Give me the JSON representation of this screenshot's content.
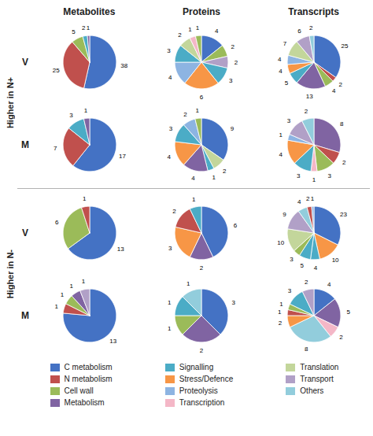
{
  "chart_data": {
    "type": "pie",
    "data_labels": true,
    "legend": "bottom",
    "columns": [
      "Metabolites",
      "Proteins",
      "Transcripts"
    ],
    "groups": [
      {
        "label": "Higher in N+",
        "rows": [
          {
            "label": "V",
            "pies": [
              {
                "values": [
                  38,
                  25,
                  5,
                  2,
                  1
                ],
                "colors": [
                  "#4472C4",
                  "#C0504D",
                  "#9BBB59",
                  "#4BACC6",
                  "#8064A2"
                ]
              },
              {
                "values": [
                  4,
                  2,
                  2,
                  3,
                  6,
                  4,
                  3,
                  2,
                  1,
                  1
                ],
                "colors": [
                  "#4472C4",
                  "#9BBB59",
                  "#B1A0C7",
                  "#4BACC6",
                  "#F79646",
                  "#8DB4E2",
                  "#4BACC6",
                  "#C3D69B",
                  "#F4B7C7",
                  "#9BBB59"
                ]
              },
              {
                "values": [
                  25,
                  2,
                  4,
                  13,
                  5,
                  4,
                  4,
                  7,
                  6,
                  2
                ],
                "colors": [
                  "#4472C4",
                  "#C0504D",
                  "#9BBB59",
                  "#8064A2",
                  "#4BACC6",
                  "#F79646",
                  "#8DB4E2",
                  "#C3D69B",
                  "#B1A0C7",
                  "#92CDDC"
                ]
              }
            ]
          },
          {
            "label": "M",
            "pies": [
              {
                "values": [
                  17,
                  7,
                  3,
                  1
                ],
                "colors": [
                  "#4472C4",
                  "#C0504D",
                  "#4BACC6",
                  "#8064A2"
                ]
              },
              {
                "values": [
                  9,
                  2,
                  1,
                  4,
                  4,
                  3,
                  2,
                  1
                ],
                "colors": [
                  "#4472C4",
                  "#C3D69B",
                  "#4BACC6",
                  "#8064A2",
                  "#F79646",
                  "#4BACC6",
                  "#8DB4E2",
                  "#9BBB59"
                ]
              },
              {
                "values": [
                  8,
                  2,
                  3,
                  1,
                  3,
                  4,
                  1,
                  3,
                  2
                ],
                "colors": [
                  "#8064A2",
                  "#C0504D",
                  "#9BBB59",
                  "#F4B7C7",
                  "#4BACC6",
                  "#F79646",
                  "#8DB4E2",
                  "#B1A0C7",
                  "#92CDDC"
                ]
              }
            ]
          }
        ]
      },
      {
        "label": "Higher in N-",
        "rows": [
          {
            "label": "V",
            "pies": [
              {
                "values": [
                  13,
                  6,
                  1
                ],
                "colors": [
                  "#4472C4",
                  "#9BBB59",
                  "#C0504D"
                ]
              },
              {
                "values": [
                  6,
                  2,
                  3,
                  2,
                  1
                ],
                "colors": [
                  "#4472C4",
                  "#8064A2",
                  "#F79646",
                  "#C0504D",
                  "#4BACC6"
                ]
              },
              {
                "values": [
                  23,
                  10,
                  4,
                  5,
                  3,
                  10,
                  9,
                  4,
                  2,
                  1
                ],
                "colors": [
                  "#4472C4",
                  "#F79646",
                  "#4BACC6",
                  "#4BACC6",
                  "#9BBB59",
                  "#C3D69B",
                  "#B1A0C7",
                  "#92CDDC",
                  "#C0504D",
                  "#8DB4E2"
                ]
              }
            ]
          },
          {
            "label": "M",
            "pies": [
              {
                "values": [
                  13,
                  1,
                  1,
                  1,
                  1
                ],
                "colors": [
                  "#4472C4",
                  "#C0504D",
                  "#9BBB59",
                  "#8064A2",
                  "#B1A0C7"
                ]
              },
              {
                "values": [
                  3,
                  2,
                  1,
                  1,
                  1
                ],
                "colors": [
                  "#4472C4",
                  "#8064A2",
                  "#9BBB59",
                  "#4BACC6",
                  "#92CDDC"
                ]
              },
              {
                "values": [
                  4,
                  5,
                  2,
                  8,
                  2,
                  1,
                  1,
                  3,
                  2
                ],
                "colors": [
                  "#4472C4",
                  "#8064A2",
                  "#F4B7C7",
                  "#92CDDC",
                  "#F79646",
                  "#C0504D",
                  "#9BBB59",
                  "#4BACC6",
                  "#B1A0C7"
                ]
              }
            ]
          }
        ]
      }
    ],
    "legend_items": [
      {
        "label": "C metabolism",
        "color": "#4472C4"
      },
      {
        "label": "N metabolism",
        "color": "#C0504D"
      },
      {
        "label": "Cell wall",
        "color": "#9BBB59"
      },
      {
        "label": "Metabolism",
        "color": "#8064A2"
      },
      {
        "label": "Signalling",
        "color": "#4BACC6"
      },
      {
        "label": "Stress/Defence",
        "color": "#F79646"
      },
      {
        "label": "Proteolysis",
        "color": "#8DB4E2"
      },
      {
        "label": "Transcription",
        "color": "#F4B7C7"
      },
      {
        "label": "Translation",
        "color": "#C3D69B"
      },
      {
        "label": "Transport",
        "color": "#B1A0C7"
      },
      {
        "label": "Others",
        "color": "#92CDDC"
      }
    ]
  }
}
